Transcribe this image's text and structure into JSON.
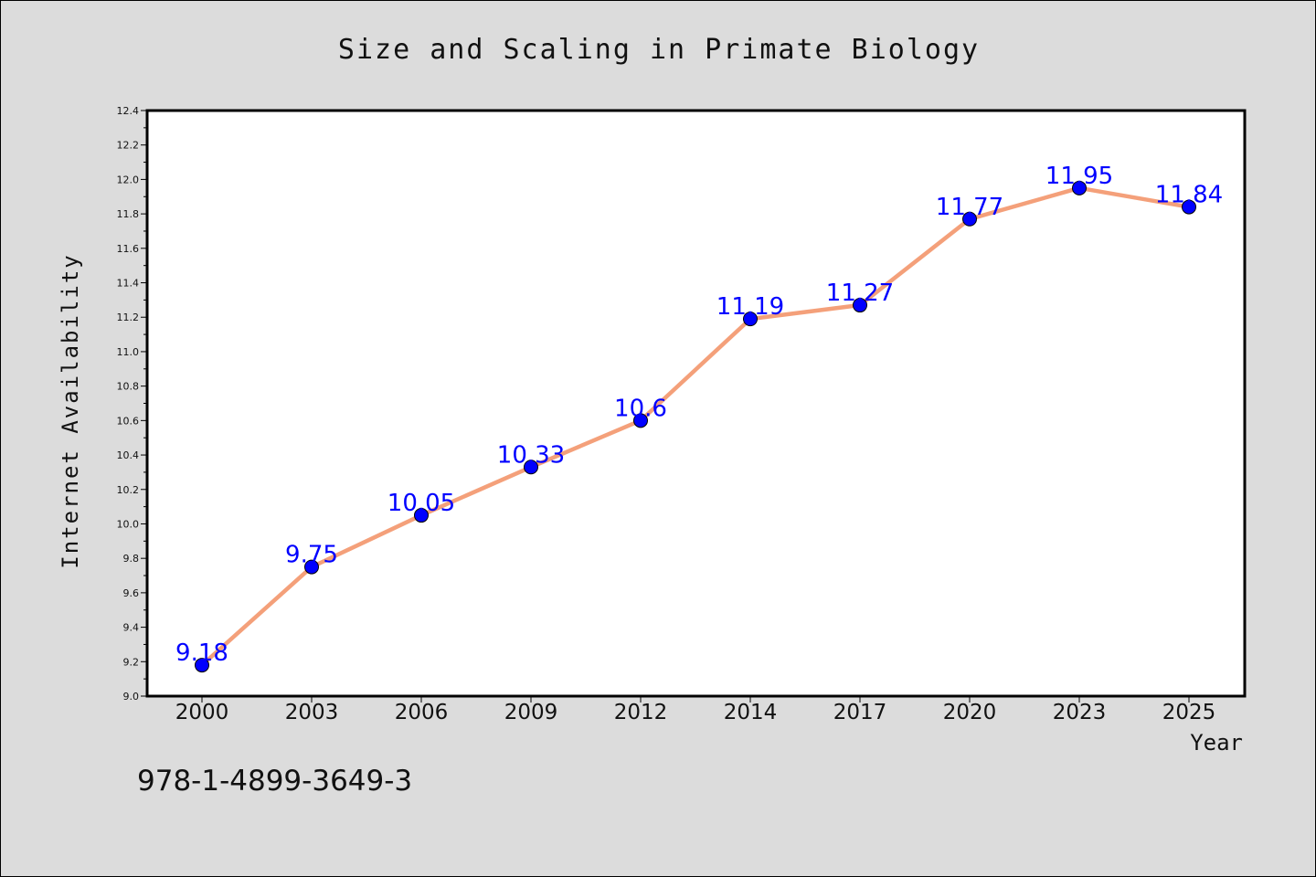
{
  "chart_data": {
    "type": "line",
    "title": "Size and Scaling in Primate Biology",
    "xlabel": "Year",
    "ylabel": "Internet Availability",
    "categories": [
      "2000",
      "2003",
      "2006",
      "2009",
      "2012",
      "2014",
      "2017",
      "2020",
      "2023",
      "2025"
    ],
    "values": [
      9.18,
      9.75,
      10.05,
      10.33,
      10.6,
      11.19,
      11.27,
      11.77,
      11.95,
      11.84
    ],
    "data_labels": [
      "9.18",
      "9.75",
      "10.05",
      "10.33",
      "10.6",
      "11.19",
      "11.27",
      "11.77",
      "11.95",
      "11.84"
    ],
    "ylim": [
      9.0,
      12.4
    ],
    "yticks": [
      "9.0",
      "9.2",
      "9.4",
      "9.6",
      "9.8",
      "10.0",
      "10.2",
      "10.4",
      "10.6",
      "10.8",
      "11.0",
      "11.2",
      "11.4",
      "11.6",
      "11.8",
      "12.0",
      "12.2",
      "12.4"
    ],
    "grid": false,
    "legend": "none",
    "colors": {
      "line": "#f4a07a",
      "marker": "#0000ff",
      "label": "#0000ff",
      "background": "#dcdcdc",
      "plot_background": "#ffffff"
    }
  },
  "footer": {
    "isbn": "978-1-4899-3649-3"
  }
}
